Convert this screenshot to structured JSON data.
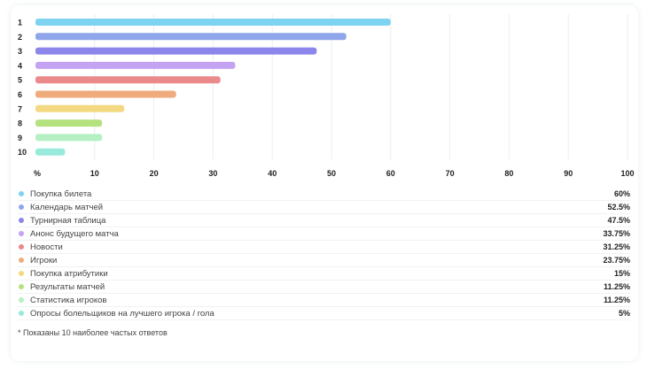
{
  "chart_data": {
    "type": "bar",
    "orientation": "horizontal",
    "categories": [
      "1",
      "2",
      "3",
      "4",
      "5",
      "6",
      "7",
      "8",
      "9",
      "10"
    ],
    "values": [
      60,
      52.5,
      47.5,
      33.75,
      31.25,
      23.75,
      15,
      11.25,
      11.25,
      5
    ],
    "colors": [
      "#7dd3f0",
      "#8fa6ea",
      "#8c86ea",
      "#c4a3f2",
      "#eb8a8a",
      "#efab7c",
      "#f2d982",
      "#b4e27f",
      "#b5f0c3",
      "#98eadb"
    ],
    "x_ticks": [
      "%",
      "10",
      "20",
      "30",
      "40",
      "50",
      "60",
      "70",
      "80",
      "90",
      "100"
    ],
    "xlim": [
      0,
      100
    ],
    "grid": true
  },
  "legend": [
    {
      "label": "Покупка билета",
      "value": "60%"
    },
    {
      "label": "Календарь матчей",
      "value": "52.5%"
    },
    {
      "label": "Турнирная таблица",
      "value": "47.5%"
    },
    {
      "label": "Анонс будущего матча",
      "value": "33.75%"
    },
    {
      "label": "Новости",
      "value": "31.25%"
    },
    {
      "label": "Игроки",
      "value": "23.75%"
    },
    {
      "label": "Покупка атрибутики",
      "value": "15%"
    },
    {
      "label": "Результаты матчей",
      "value": "11.25%"
    },
    {
      "label": "Статистика игроков",
      "value": "11.25%"
    },
    {
      "label": "Опросы болельщиков на лучшего игрока / гола",
      "value": "5%"
    }
  ],
  "footnote": "* Показаны 10 наиболее частых ответов"
}
